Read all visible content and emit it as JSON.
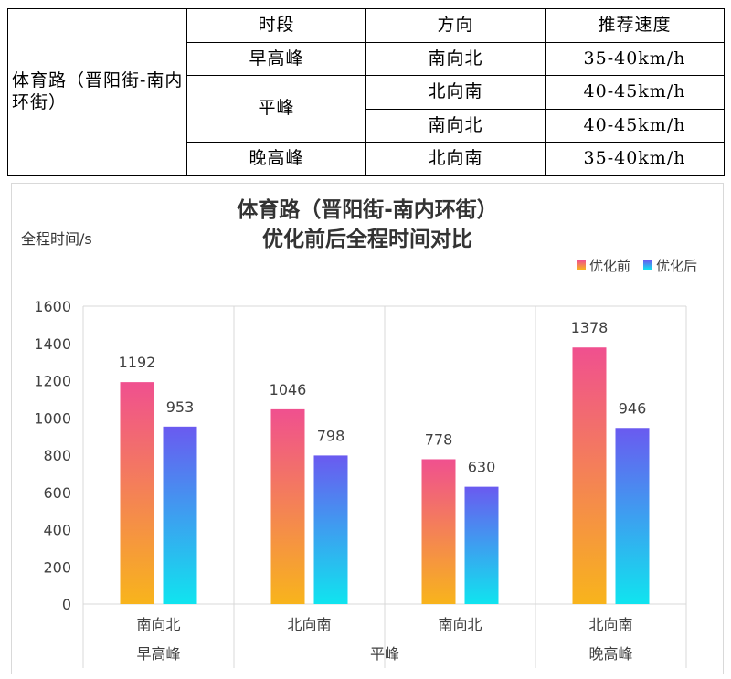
{
  "table": {
    "headers": [
      "时段",
      "方向",
      "推荐速度"
    ],
    "road": "体育路（晋阳街-南内环街）",
    "rows": [
      {
        "period": "早高峰",
        "direction": "南向北",
        "speed": "35-40km/h"
      },
      {
        "period": "平峰",
        "direction": "北向南",
        "speed": "40-45km/h"
      },
      {
        "period": "",
        "direction": "南向北",
        "speed": "40-45km/h"
      },
      {
        "period": "晚高峰",
        "direction": "北向南",
        "speed": "35-40km/h"
      }
    ]
  },
  "chart_data": {
    "type": "bar",
    "title_line1": "体育路（晋阳街-南内环街）",
    "title_line2": "优化前后全程时间对比",
    "ylabel": "全程时间/s",
    "ylim": [
      0,
      1600
    ],
    "yticks": [
      0,
      200,
      400,
      600,
      800,
      1000,
      1200,
      1400,
      1600
    ],
    "categories": [
      "南向北",
      "北向南",
      "南向北",
      "北向南"
    ],
    "groups": [
      {
        "label": "早高峰",
        "span": 1
      },
      {
        "label": "平峰",
        "span": 2
      },
      {
        "label": "晚高峰",
        "span": 1
      }
    ],
    "series": [
      {
        "name": "优化前",
        "values": [
          1192,
          1046,
          778,
          1378
        ],
        "color_top": "#f0508f",
        "color_bottom": "#f8b41c"
      },
      {
        "name": "优化后",
        "values": [
          953,
          798,
          630,
          946
        ],
        "color_top": "#6a5af0",
        "color_bottom": "#10e4ef"
      }
    ],
    "legend_position": "top-right",
    "grid": false
  }
}
